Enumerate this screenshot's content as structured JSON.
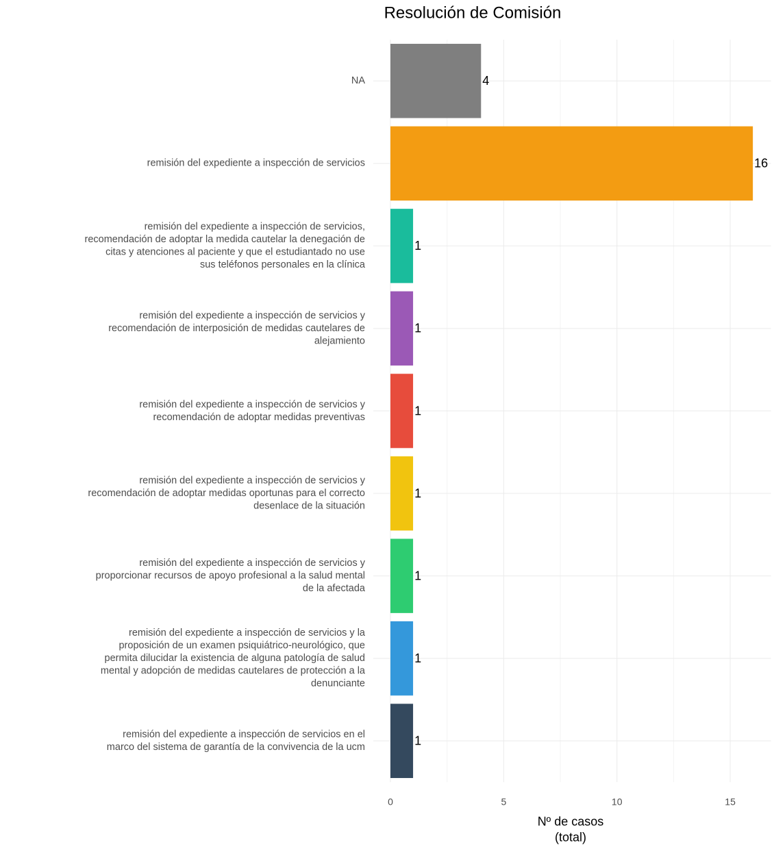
{
  "chart_data": {
    "type": "barh",
    "title": "Resolución de Comisión",
    "categories": [
      "NA",
      "remisión del expediente a inspección de servicios",
      "remisión del expediente a inspección de servicios,\nrecomendación de adoptar la medida cautelar la denegación de\ncitas y atenciones al paciente y que el estudiantado no use\nsus teléfonos personales en la clínica",
      "remisión del expediente a inspección de servicios y\nrecomendación de interposición de medidas cautelares de\nalejamiento",
      "remisión del expediente a inspección de servicios y\nrecomendación de adoptar medidas preventivas",
      "remisión del expediente a inspección de servicios y\nrecomendación de adoptar medidas oportunas para el correcto\ndesenlace de la situación",
      "remisión del expediente a inspección de servicios y\nproporcionar recursos de apoyo profesional a la salud mental\nde la afectada",
      "remisión del expediente a inspección de servicios y la\nproposición de un examen psiquiátrico-neurológico, que\npermita dilucidar la existencia de alguna patología de salud\nmental y adopción de medidas cautelares de protección a la\ndenunciante",
      "remisión del expediente a inspección de servicios en el\nmarco del sistema de garantía de la convivencia de la ucm"
    ],
    "values": [
      4,
      16,
      1,
      1,
      1,
      1,
      1,
      1,
      1
    ],
    "colors": [
      "#7f7f7f",
      "#f39c12",
      "#1abc9c",
      "#9b59b6",
      "#e74c3c",
      "#f1c40f",
      "#2ecc71",
      "#3498db",
      "#34495e"
    ],
    "xlabel": "Nº de casos\n(total)",
    "xlim": [
      0,
      16.8
    ],
    "xticks": [
      0,
      5,
      10,
      15
    ],
    "minor_xticks": [
      2.5,
      7.5,
      12.5
    ],
    "grid": true
  }
}
